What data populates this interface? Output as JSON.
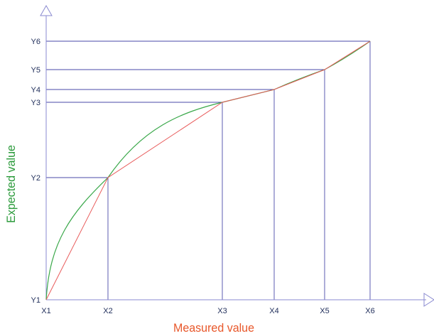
{
  "chart_data": {
    "type": "line",
    "title": "",
    "xlabel": "Measured value",
    "ylabel": "Expected value",
    "x_ticks": [
      "X1",
      "X2",
      "X3",
      "X4",
      "X5",
      "X6"
    ],
    "y_ticks": [
      "Y1",
      "Y2",
      "Y3",
      "Y4",
      "Y5",
      "Y6"
    ],
    "x": [
      1,
      2,
      3,
      4,
      5,
      6
    ],
    "y": [
      1,
      2,
      3,
      4,
      5,
      6
    ],
    "axis_range_note_units": "tick index",
    "xlim": [
      1,
      6
    ],
    "ylim": [
      1,
      6
    ],
    "series": [
      {
        "curve": "smooth",
        "color": "#3aa84a"
      },
      {
        "curve": "piecewise-linear",
        "color": "#e85a5a"
      }
    ],
    "grid": "guide lines from each point to both axes",
    "legend": "none"
  },
  "colors": {
    "axis": "#8a8ad0",
    "guide": "#4a4aa8",
    "xlabel": "#e8572a",
    "ylabel": "#2a9a3a",
    "tick_text": "#1f2d5a"
  }
}
